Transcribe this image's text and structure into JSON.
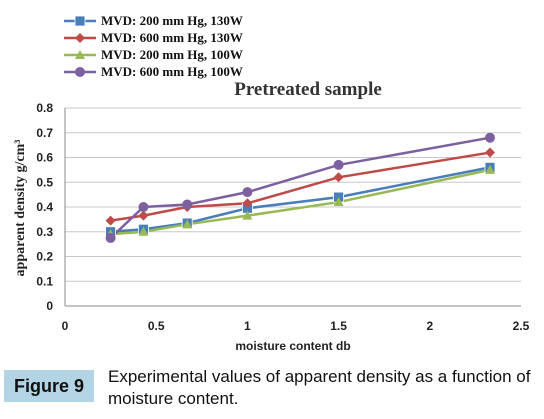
{
  "chart_data": {
    "type": "line",
    "title": "Pretreated sample",
    "xlabel": "moisture content db",
    "ylabel": "apparent density g/cm³",
    "xlim": [
      0,
      2.5
    ],
    "ylim": [
      0,
      0.8
    ],
    "xticks": [
      "0",
      "0.5",
      "1",
      "1.5",
      "2",
      "2.5"
    ],
    "yticks": [
      "0",
      "0.1",
      "0.2",
      "0.3",
      "0.4",
      "0.5",
      "0.6",
      "0.7",
      "0.8"
    ],
    "grid": true,
    "legend_position": "top-left",
    "series": [
      {
        "name": "MVD: 200 mm Hg, 130W",
        "color": "#4a7ebb",
        "marker": "square",
        "x": [
          0.25,
          0.43,
          0.67,
          1.0,
          1.5,
          2.33
        ],
        "y": [
          0.3,
          0.31,
          0.335,
          0.395,
          0.44,
          0.56
        ]
      },
      {
        "name": "MVD: 600 mm Hg, 130W",
        "color": "#be4b48",
        "marker": "diamond",
        "x": [
          0.25,
          0.43,
          0.67,
          1.0,
          1.5,
          2.33
        ],
        "y": [
          0.345,
          0.365,
          0.4,
          0.415,
          0.52,
          0.62
        ]
      },
      {
        "name": "MVD: 200 mm Hg, 100W",
        "color": "#98b954",
        "marker": "triangle",
        "x": [
          0.25,
          0.43,
          0.67,
          1.0,
          1.5,
          2.33
        ],
        "y": [
          0.29,
          0.3,
          0.33,
          0.365,
          0.42,
          0.55
        ]
      },
      {
        "name": "MVD: 600 mm Hg, 100W",
        "color": "#7d60a0",
        "marker": "circle",
        "x": [
          0.25,
          0.43,
          0.67,
          1.0,
          1.5,
          2.33
        ],
        "y": [
          0.275,
          0.4,
          0.41,
          0.46,
          0.57,
          0.68
        ]
      }
    ]
  },
  "caption": {
    "figure_label": "Figure 9",
    "text": "Experimental values of apparent density as a function of moisture content."
  }
}
